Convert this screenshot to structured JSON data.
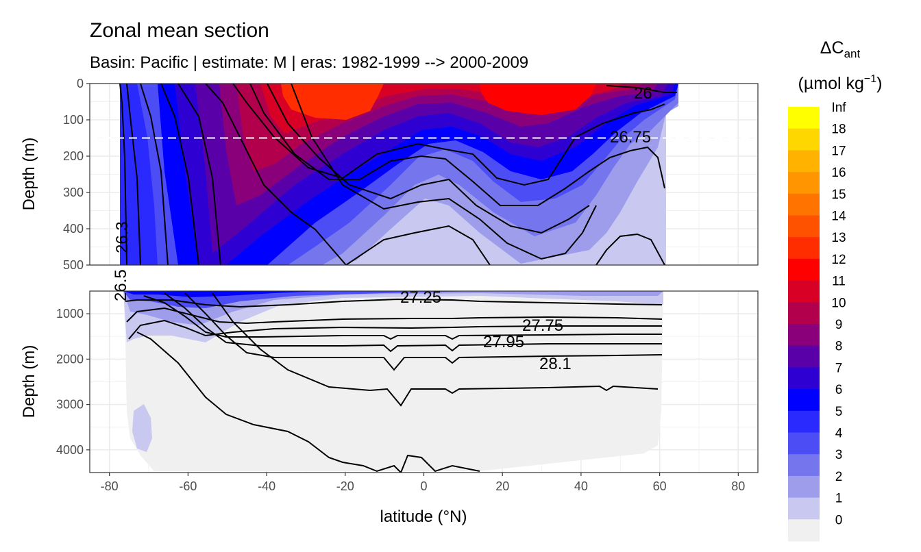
{
  "chart_data": {
    "type": "contour",
    "title": "Zonal mean section",
    "subtitle": "Basin: Pacific | estimate: M  | eras: 1982-1999 --> 2000-2009",
    "xlabel": "latitude (°N)",
    "ylabel": "Depth (m)",
    "xlim": [
      -85,
      85
    ],
    "x_ticks": [
      "-80",
      "-60",
      "-40",
      "-20",
      "0",
      "20",
      "40",
      "60",
      "80"
    ],
    "x_tick_values": [
      -80,
      -60,
      -40,
      -20,
      0,
      20,
      40,
      60,
      80
    ],
    "panels": [
      {
        "name": "upper",
        "ylim": [
          0,
          500
        ],
        "y_ticks": [
          "0",
          "100",
          "200",
          "300",
          "400",
          "500"
        ],
        "y_tick_values": [
          0,
          100,
          200,
          300,
          400,
          500
        ],
        "reference_line_depth": 150
      },
      {
        "name": "lower",
        "ylim": [
          500,
          4500
        ],
        "y_ticks": [
          "1000",
          "2000",
          "3000",
          "4000"
        ],
        "y_tick_values": [
          1000,
          2000,
          3000,
          4000
        ]
      }
    ],
    "fill_variable": "ΔCant (µmol kg-1)",
    "legend": {
      "title_main": "ΔC",
      "title_sub": "ant",
      "unit": "(µmol kg",
      "unit_sup": "−1",
      "unit_end": ")",
      "levels": [
        "Inf",
        "18",
        "17",
        "16",
        "15",
        "14",
        "13",
        "12",
        "11",
        "10",
        "9",
        "8",
        "7",
        "6",
        "5",
        "4",
        "3",
        "2",
        "1",
        "0"
      ],
      "colors": [
        "#ffff00",
        "#ffd700",
        "#ffb200",
        "#ff9500",
        "#ff7300",
        "#ff5200",
        "#ff2d00",
        "#ff0000",
        "#d90026",
        "#b3004d",
        "#8a007a",
        "#5a00a8",
        "#2e00d1",
        "#0000ff",
        "#2a2aff",
        "#4d4df5",
        "#7575ee",
        "#9d9deb",
        "#c8c8f0",
        "#f0f0f0"
      ]
    },
    "isopycnal_labels": [
      "26",
      "26.75",
      "26.3",
      "27.25",
      "27.75",
      "27.95",
      "28.1",
      "26.5"
    ]
  }
}
